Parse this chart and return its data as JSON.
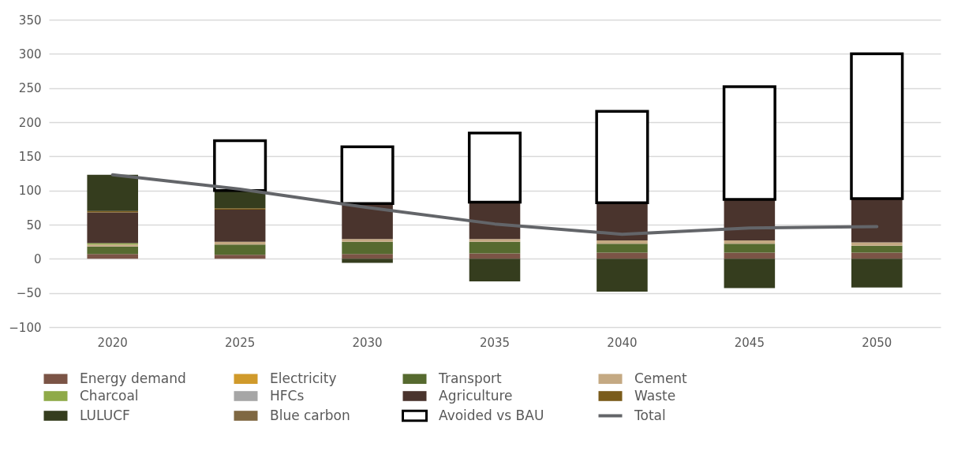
{
  "chart_data": {
    "type": "bar",
    "stacked": true,
    "categories": [
      "2020",
      "2025",
      "2030",
      "2035",
      "2040",
      "2045",
      "2050"
    ],
    "ylim": [
      -100,
      350
    ],
    "yticks": [
      -100,
      -50,
      0,
      50,
      100,
      150,
      200,
      250,
      300,
      350
    ],
    "grid": "y",
    "legend": "bottom",
    "series": [
      {
        "name": "Energy demand",
        "color": "#7b5446",
        "values": [
          7,
          6,
          7,
          8,
          9,
          9,
          9
        ]
      },
      {
        "name": "Electricity",
        "color": "#d09a2b",
        "values": [
          0,
          0,
          0,
          0,
          0,
          0,
          0
        ]
      },
      {
        "name": "Transport",
        "color": "#566a2f",
        "values": [
          11,
          15,
          18,
          17,
          13,
          13,
          10
        ]
      },
      {
        "name": "Cement",
        "color": "#c4a983",
        "values": [
          3,
          4,
          4,
          4,
          5,
          5,
          5
        ]
      },
      {
        "name": "Charcoal",
        "color": "#8faa48",
        "values": [
          2,
          0,
          0,
          0,
          0,
          0,
          0
        ]
      },
      {
        "name": "HFCs",
        "color": "#a6a6a6",
        "values": [
          0,
          0,
          0,
          0,
          0,
          0,
          0
        ]
      },
      {
        "name": "Agriculture",
        "color": "#4a342d",
        "values": [
          45,
          47,
          52,
          54,
          55,
          60,
          64
        ]
      },
      {
        "name": "Waste",
        "color": "#7a5b1a",
        "values": [
          2,
          2,
          0,
          0,
          0,
          0,
          0
        ]
      },
      {
        "name": "LULUCF",
        "color": "#353d1e",
        "values": [
          53,
          26,
          -6,
          -33,
          -48,
          -43,
          -42
        ]
      },
      {
        "name": "Blue carbon",
        "color": "#7f6842",
        "values": [
          0,
          0,
          0,
          0,
          0,
          0,
          0
        ]
      },
      {
        "name": "Avoided vs BAU",
        "color": "#ffffff",
        "values": [
          null,
          73,
          83,
          101,
          134,
          165,
          212
        ]
      },
      {
        "name": "Total",
        "type": "line",
        "color": "#636569",
        "marker": "none",
        "values": [
          123,
          102,
          75,
          51,
          36,
          45,
          47
        ]
      }
    ]
  }
}
